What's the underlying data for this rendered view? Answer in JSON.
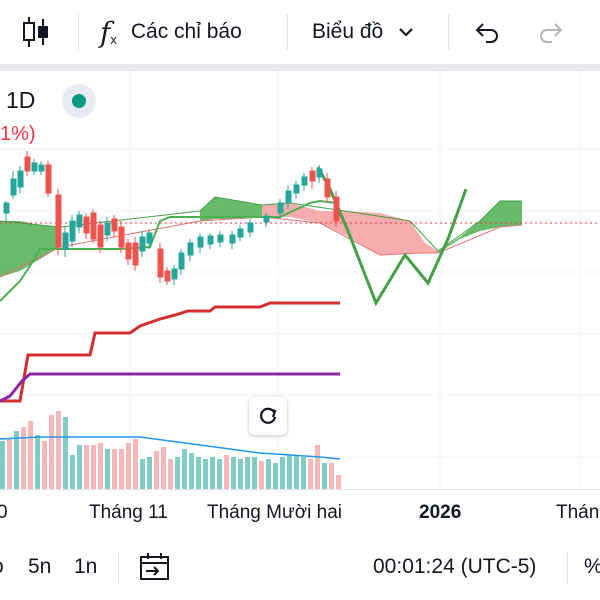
{
  "toolbar": {
    "indicators_label": "Các chỉ báo",
    "chart_type_label": "Biểu đồ"
  },
  "chart": {
    "symbol_interval": "1D",
    "change_text": "1%)",
    "x_labels": [
      {
        "text": "0",
        "bold": false
      },
      {
        "text": "Tháng 11",
        "bold": false
      },
      {
        "text": "Tháng Mười hai",
        "bold": false
      },
      {
        "text": "2026",
        "bold": true
      },
      {
        "text": "Thán",
        "bold": false
      }
    ]
  },
  "bottombar": {
    "range_1": "o",
    "range_2": "5n",
    "range_3": "1n",
    "time": "00:01:24 (UTC-5)",
    "percent": "%"
  },
  "colors": {
    "up": "#26a69a",
    "down": "#ef5350",
    "cloud_up": "#4caf50",
    "cloud_down": "#f7a9a9",
    "kijun": "#d32f2f",
    "tenkan_purple": "#8e24aa",
    "chikou": "#43a047"
  }
}
